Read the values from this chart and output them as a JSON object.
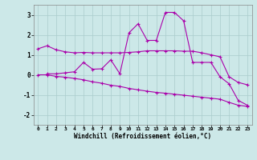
{
  "xlabel": "Windchill (Refroidissement éolien,°C)",
  "background_color": "#cce8e8",
  "grid_color": "#aacccc",
  "line_color": "#aa00aa",
  "xlim": [
    -0.5,
    23.5
  ],
  "ylim": [
    -2.5,
    3.5
  ],
  "yticks": [
    -2,
    -1,
    0,
    1,
    2,
    3
  ],
  "xticks": [
    0,
    1,
    2,
    3,
    4,
    5,
    6,
    7,
    8,
    9,
    10,
    11,
    12,
    13,
    14,
    15,
    16,
    17,
    18,
    19,
    20,
    21,
    22,
    23
  ],
  "line1_x": [
    0,
    1,
    2,
    3,
    4,
    5,
    6,
    7,
    8,
    9,
    10,
    11,
    12,
    13,
    14,
    15,
    16,
    17,
    18,
    19,
    20,
    21,
    22,
    23
  ],
  "line1_y": [
    1.3,
    1.45,
    1.25,
    1.15,
    1.1,
    1.12,
    1.1,
    1.1,
    1.1,
    1.1,
    1.12,
    1.15,
    1.2,
    1.2,
    1.2,
    1.2,
    1.18,
    1.18,
    1.1,
    1.0,
    0.9,
    -0.1,
    -0.38,
    -0.5
  ],
  "line2_x": [
    1,
    2,
    3,
    4,
    5,
    6,
    7,
    8,
    9,
    10,
    11,
    12,
    13,
    14,
    15,
    16,
    17,
    18,
    19,
    20,
    21,
    22,
    23
  ],
  "line2_y": [
    0.05,
    0.05,
    0.1,
    0.15,
    0.62,
    0.28,
    0.3,
    0.75,
    0.05,
    2.1,
    2.55,
    1.72,
    1.72,
    3.12,
    3.12,
    2.7,
    0.62,
    0.62,
    0.62,
    -0.1,
    -0.45,
    -1.28,
    -1.52
  ],
  "line3_x": [
    0,
    1,
    2,
    3,
    4,
    5,
    6,
    7,
    8,
    9,
    10,
    11,
    12,
    13,
    14,
    15,
    16,
    17,
    18,
    19,
    20,
    21,
    22,
    23
  ],
  "line3_y": [
    0.0,
    0.0,
    -0.08,
    -0.12,
    -0.18,
    -0.25,
    -0.35,
    -0.42,
    -0.52,
    -0.58,
    -0.68,
    -0.75,
    -0.82,
    -0.88,
    -0.92,
    -0.97,
    -1.02,
    -1.07,
    -1.12,
    -1.17,
    -1.22,
    -1.38,
    -1.52,
    -1.58
  ]
}
